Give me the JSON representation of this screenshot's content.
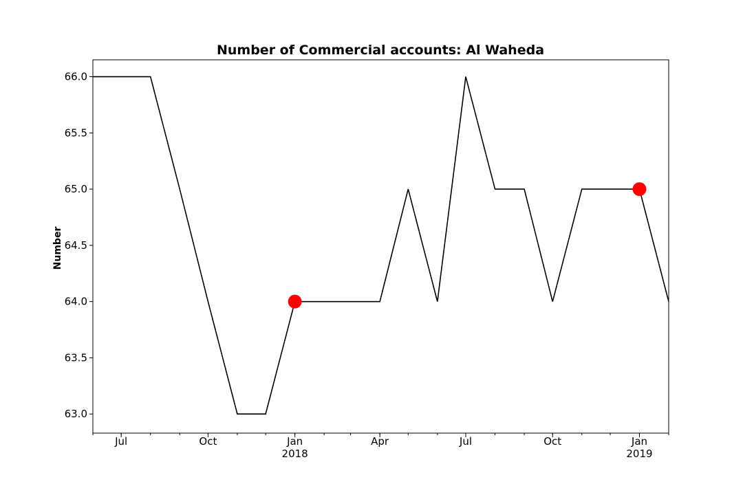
{
  "chart_data": {
    "type": "line",
    "title": "Number of Commercial accounts: Al Waheda",
    "xlabel": "",
    "ylabel": "Number",
    "x": [
      "2017-06-01",
      "2017-07-01",
      "2017-08-01",
      "2017-09-01",
      "2017-10-01",
      "2017-11-01",
      "2017-12-01",
      "2018-01-01",
      "2018-02-01",
      "2018-03-01",
      "2018-04-01",
      "2018-05-01",
      "2018-06-01",
      "2018-07-01",
      "2018-08-01",
      "2018-09-01",
      "2018-10-01",
      "2018-11-01",
      "2018-12-01",
      "2019-01-01",
      "2019-02-01"
    ],
    "series": [
      {
        "values": [
          66,
          66,
          66,
          65,
          64,
          63,
          63,
          64,
          64,
          64,
          64,
          65,
          64,
          66,
          65,
          65,
          64,
          65,
          65,
          65,
          64
        ],
        "color": "#000000"
      }
    ],
    "highlighted_points": [
      {
        "x": "2018-01-01",
        "y": 64
      },
      {
        "x": "2019-01-01",
        "y": 65
      }
    ],
    "highlight_color": "#ff0000",
    "xlim": [
      "2017-06-01",
      "2019-02-01"
    ],
    "ylim": [
      62.83,
      66.15
    ],
    "yticks": [
      "63.0",
      "63.5",
      "64.0",
      "64.5",
      "65.0",
      "65.5",
      "66.0"
    ],
    "xticks": [
      {
        "x": "2017-07-01",
        "label": "Jul",
        "sublabel": ""
      },
      {
        "x": "2017-10-01",
        "label": "Oct",
        "sublabel": ""
      },
      {
        "x": "2018-01-01",
        "label": "Jan",
        "sublabel": "2018"
      },
      {
        "x": "2018-04-01",
        "label": "Apr",
        "sublabel": ""
      },
      {
        "x": "2018-07-01",
        "label": "Jul",
        "sublabel": ""
      },
      {
        "x": "2018-10-01",
        "label": "Oct",
        "sublabel": ""
      },
      {
        "x": "2019-01-01",
        "label": "Jan",
        "sublabel": "2019"
      }
    ],
    "grid": false
  }
}
